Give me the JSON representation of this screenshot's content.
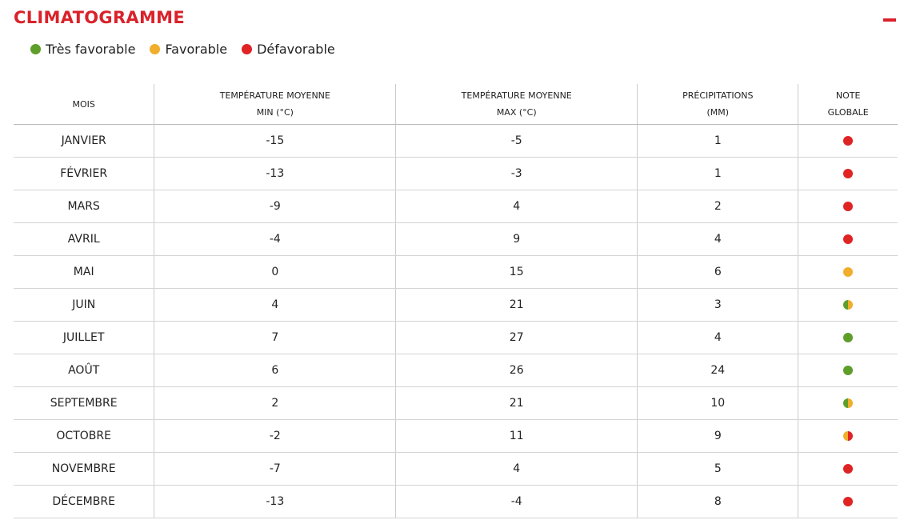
{
  "header": {
    "title": "CLIMATOGRAMME"
  },
  "legend": [
    {
      "label": "Très favorable",
      "color": "#5e9e2b"
    },
    {
      "label": "Favorable",
      "color": "#f0ae2c"
    },
    {
      "label": "Défavorable",
      "color": "#e02424"
    }
  ],
  "table": {
    "columns": [
      [
        "MOIS"
      ],
      [
        "TEMPÉRATURE MOYENNE",
        "MIN (°C)"
      ],
      [
        "TEMPÉRATURE MOYENNE",
        "MAX (°C)"
      ],
      [
        "PRÉCIPITATIONS",
        "(MM)"
      ],
      [
        "NOTE",
        "GLOBALE"
      ]
    ],
    "rows": [
      {
        "month": "JANVIER",
        "min": -15,
        "max": -5,
        "precip": 1,
        "note": [
          "#e02424"
        ]
      },
      {
        "month": "FÉVRIER",
        "min": -13,
        "max": -3,
        "precip": 1,
        "note": [
          "#e02424"
        ]
      },
      {
        "month": "MARS",
        "min": -9,
        "max": 4,
        "precip": 2,
        "note": [
          "#e02424"
        ]
      },
      {
        "month": "AVRIL",
        "min": -4,
        "max": 9,
        "precip": 4,
        "note": [
          "#e02424"
        ]
      },
      {
        "month": "MAI",
        "min": 0,
        "max": 15,
        "precip": 6,
        "note": [
          "#f0ae2c"
        ]
      },
      {
        "month": "JUIN",
        "min": 4,
        "max": 21,
        "precip": 3,
        "note": [
          "#5e9e2b",
          "#f0ae2c"
        ]
      },
      {
        "month": "JUILLET",
        "min": 7,
        "max": 27,
        "precip": 4,
        "note": [
          "#5e9e2b"
        ]
      },
      {
        "month": "AOÛT",
        "min": 6,
        "max": 26,
        "precip": 24,
        "note": [
          "#5e9e2b"
        ]
      },
      {
        "month": "SEPTEMBRE",
        "min": 2,
        "max": 21,
        "precip": 10,
        "note": [
          "#5e9e2b",
          "#f0ae2c"
        ]
      },
      {
        "month": "OCTOBRE",
        "min": -2,
        "max": 11,
        "precip": 9,
        "note": [
          "#f0ae2c",
          "#e02424"
        ]
      },
      {
        "month": "NOVEMBRE",
        "min": -7,
        "max": 4,
        "precip": 5,
        "note": [
          "#e02424"
        ]
      },
      {
        "month": "DÉCEMBRE",
        "min": -13,
        "max": -4,
        "precip": 8,
        "note": [
          "#e02424"
        ]
      }
    ]
  }
}
